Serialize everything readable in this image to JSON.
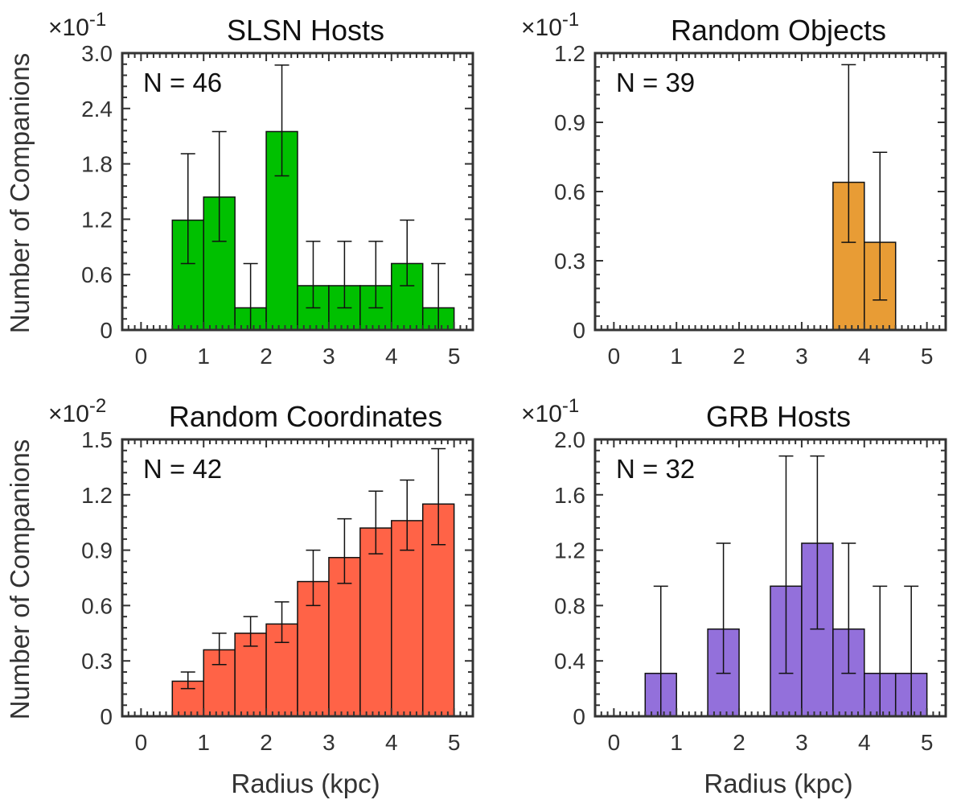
{
  "figure": {
    "ylabel": "Number of Companions",
    "xlabel": "Radius (kpc)"
  },
  "chart_data": [
    {
      "type": "bar",
      "title": "SLSN Hosts",
      "annotation": "N = 46",
      "scale_text": "×10",
      "scale_exponent": "-1",
      "xlim": [
        -0.3,
        5.3
      ],
      "ylim": [
        0,
        3.0
      ],
      "xticks": [
        0,
        1,
        2,
        3,
        4,
        5
      ],
      "yticks": [
        0,
        0.6,
        1.2,
        1.8,
        2.4,
        3.0
      ],
      "ytick_labels": [
        "0",
        "0.6",
        "1.2",
        "1.8",
        "2.4",
        "3.0"
      ],
      "color": "#00c000",
      "bin_width": 0.5,
      "x": [
        0.0,
        0.5,
        1.0,
        1.5,
        2.0,
        2.5,
        3.0,
        3.5,
        4.0,
        4.5
      ],
      "values": [
        0,
        1.19,
        1.44,
        0.24,
        2.15,
        0.48,
        0.48,
        0.48,
        0.72,
        0.24
      ],
      "err_low": [
        0,
        0.72,
        0.96,
        0.0,
        1.67,
        0.24,
        0.24,
        0.24,
        0.48,
        0.0
      ],
      "err_high": [
        0,
        1.91,
        2.15,
        0.72,
        2.87,
        0.96,
        0.96,
        0.96,
        1.19,
        0.72
      ]
    },
    {
      "type": "bar",
      "title": "Random Objects",
      "annotation": "N = 39",
      "scale_text": "×10",
      "scale_exponent": "-1",
      "xlim": [
        -0.3,
        5.3
      ],
      "ylim": [
        0,
        1.2
      ],
      "xticks": [
        0,
        1,
        2,
        3,
        4,
        5
      ],
      "yticks": [
        0,
        0.3,
        0.6,
        0.9,
        1.2
      ],
      "ytick_labels": [
        "0",
        "0.3",
        "0.6",
        "0.9",
        "1.2"
      ],
      "color": "#e89c35",
      "bin_width": 0.5,
      "x": [
        0.0,
        0.5,
        1.0,
        1.5,
        2.0,
        2.5,
        3.0,
        3.5,
        4.0,
        4.5
      ],
      "values": [
        0,
        0,
        0,
        0,
        0,
        0,
        0,
        0.64,
        0.38,
        0
      ],
      "err_low": [
        0,
        0,
        0,
        0,
        0,
        0,
        0,
        0.38,
        0.13,
        0
      ],
      "err_high": [
        0,
        0,
        0,
        0,
        0,
        0,
        0,
        1.15,
        0.77,
        0
      ]
    },
    {
      "type": "bar",
      "title": "Random Coordinates",
      "annotation": "N = 42",
      "scale_text": "×10",
      "scale_exponent": "-2",
      "xlim": [
        -0.3,
        5.3
      ],
      "ylim": [
        0,
        1.5
      ],
      "xticks": [
        0,
        1,
        2,
        3,
        4,
        5
      ],
      "yticks": [
        0,
        0.3,
        0.6,
        0.9,
        1.2,
        1.5
      ],
      "ytick_labels": [
        "0",
        "0.3",
        "0.6",
        "0.9",
        "1.2",
        "1.5"
      ],
      "color": "#ff6347",
      "bin_width": 0.5,
      "x": [
        0.0,
        0.5,
        1.0,
        1.5,
        2.0,
        2.5,
        3.0,
        3.5,
        4.0,
        4.5
      ],
      "values": [
        0,
        0.19,
        0.36,
        0.45,
        0.5,
        0.73,
        0.86,
        1.02,
        1.06,
        1.15
      ],
      "err_low": [
        0,
        0.15,
        0.28,
        0.38,
        0.4,
        0.6,
        0.72,
        0.88,
        0.9,
        0.93
      ],
      "err_high": [
        0,
        0.24,
        0.45,
        0.54,
        0.62,
        0.9,
        1.07,
        1.22,
        1.28,
        1.45
      ]
    },
    {
      "type": "bar",
      "title": "GRB Hosts",
      "annotation": "N = 32",
      "scale_text": "×10",
      "scale_exponent": "-1",
      "xlim": [
        -0.3,
        5.3
      ],
      "ylim": [
        0,
        2.0
      ],
      "xticks": [
        0,
        1,
        2,
        3,
        4,
        5
      ],
      "yticks": [
        0,
        0.4,
        0.8,
        1.2,
        1.6,
        2.0
      ],
      "ytick_labels": [
        "0",
        "0.4",
        "0.8",
        "1.2",
        "1.6",
        "2.0"
      ],
      "color": "#9370db",
      "bin_width": 0.5,
      "x": [
        0.0,
        0.5,
        1.0,
        1.5,
        2.0,
        2.5,
        3.0,
        3.5,
        4.0,
        4.5
      ],
      "values": [
        0,
        0.31,
        0,
        0.63,
        0,
        0.94,
        1.25,
        0.63,
        0.31,
        0.31
      ],
      "err_low": [
        0,
        0.0,
        0,
        0.31,
        0,
        0.31,
        0.63,
        0.31,
        0.0,
        0.0
      ],
      "err_high": [
        0,
        0.94,
        0,
        1.25,
        0,
        1.88,
        1.88,
        1.25,
        0.94,
        0.94
      ]
    }
  ]
}
